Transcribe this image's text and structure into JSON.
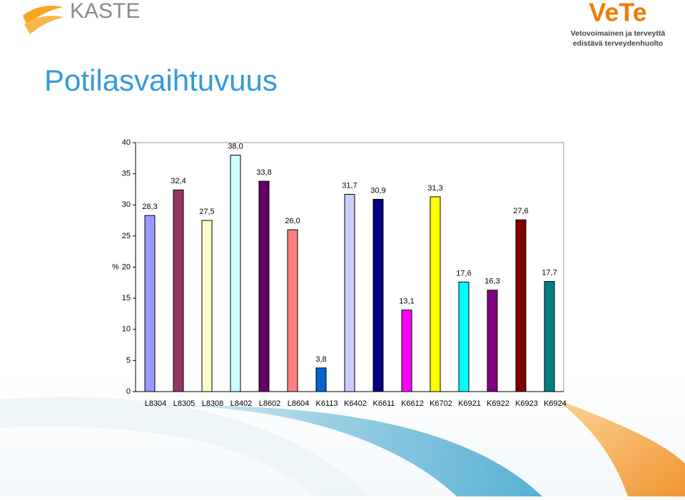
{
  "slide": {
    "logo_left": "KASTE",
    "logo_right": "VeTe",
    "tagline_1": "Vetovoimainen ja terveyttä",
    "tagline_2": "edistävä terveydenhuolto"
  },
  "chart_data": {
    "type": "bar",
    "title": "Potilasvaihtuvuus",
    "ylabel": "%",
    "categories": [
      "L8304",
      "L8305",
      "L8308",
      "L8402",
      "L8602",
      "L8604",
      "K6113",
      "K6402",
      "K6611",
      "K6612",
      "K6702",
      "K6921",
      "K6922",
      "K6923",
      "K6924"
    ],
    "values": [
      28.3,
      32.4,
      27.5,
      38.0,
      33.8,
      26.0,
      3.8,
      31.7,
      30.9,
      13.1,
      31.3,
      17.6,
      16.3,
      27.6,
      17.7
    ],
    "value_labels": [
      "28,3",
      "32,4",
      "27,5",
      "38,0",
      "33,8",
      "26,0",
      "3,8",
      "31,7",
      "30,9",
      "13,1",
      "31,3",
      "17,6",
      "16,3",
      "27,6",
      "17,7"
    ],
    "colors": [
      "#9999ff",
      "#993366",
      "#ffffcc",
      "#ccffff",
      "#660066",
      "#ff8080",
      "#0066cc",
      "#ccccff",
      "#000080",
      "#ff00ff",
      "#ffff00",
      "#00ffff",
      "#800080",
      "#800000",
      "#008080"
    ],
    "ylim": [
      0,
      40
    ],
    "yticks": [
      0,
      5,
      10,
      15,
      20,
      25,
      30,
      35,
      40
    ],
    "grid": false
  }
}
